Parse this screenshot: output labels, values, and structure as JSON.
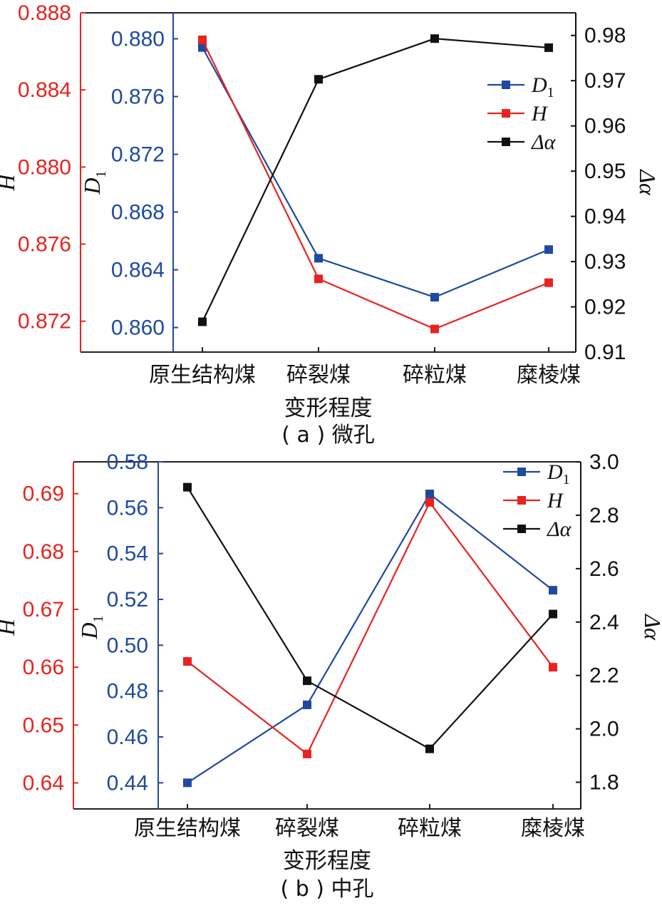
{
  "colors": {
    "H": "#e8231f",
    "D1": "#1f4aa0",
    "dalpha": "#111111"
  },
  "chart_data": [
    {
      "type": "line",
      "caption": "( a ) 微孔",
      "xlabel": "变形程度",
      "categories": [
        "原生结构煤",
        "碎裂煤",
        "碎粒煤",
        "糜棱煤"
      ],
      "axes": {
        "H": {
          "label": "H",
          "ylim": [
            0.8704,
            0.888
          ],
          "ticks": [
            "0.872",
            "0.876",
            "0.880",
            "0.884",
            "0.888"
          ],
          "color": "#e8231f"
        },
        "D1": {
          "label": "D",
          "sub": "1",
          "ylim": [
            0.8583,
            0.8818
          ],
          "ticks": [
            "0.860",
            "0.864",
            "0.868",
            "0.872",
            "0.876",
            "0.880"
          ],
          "color": "#1f4aa0"
        },
        "dalpha": {
          "label": "Δα",
          "ylim": [
            0.91,
            0.985
          ],
          "ticks": [
            "0.91",
            "0.92",
            "0.93",
            "0.94",
            "0.95",
            "0.96",
            "0.97",
            "0.98"
          ],
          "color": "#111111"
        }
      },
      "series": [
        {
          "name": "D",
          "sub": "1",
          "axis": "D1",
          "color": "#1f4aa0",
          "values": [
            0.8794,
            0.8648,
            0.8621,
            0.8654
          ]
        },
        {
          "name": "H",
          "axis": "H",
          "color": "#e8231f",
          "values": [
            0.8866,
            0.8742,
            0.8716,
            0.874
          ]
        },
        {
          "name": "Δα",
          "axis": "dalpha",
          "color": "#111111",
          "values": [
            0.9167,
            0.9703,
            0.9793,
            0.9773
          ]
        }
      ],
      "legend_placement": "top-right"
    },
    {
      "type": "line",
      "caption": "( b ) 中孔",
      "xlabel": "变形程度",
      "categories": [
        "原生结构煤",
        "碎裂煤",
        "碎粒煤",
        "糜棱煤"
      ],
      "axes": {
        "H": {
          "label": "H",
          "ylim": [
            0.6355,
            0.6955
          ],
          "ticks": [
            "0.64",
            "0.65",
            "0.66",
            "0.67",
            "0.68",
            "0.69"
          ],
          "color": "#e8231f"
        },
        "D1": {
          "label": "D",
          "sub": "1",
          "ylim": [
            0.4286,
            0.58
          ],
          "ticks": [
            "0.44",
            "0.46",
            "0.48",
            "0.50",
            "0.52",
            "0.54",
            "0.56",
            "0.58"
          ],
          "color": "#1f4aa0"
        },
        "dalpha": {
          "label": "Δα",
          "ylim": [
            1.7,
            3.0
          ],
          "ticks": [
            "1.8",
            "2.0",
            "2.2",
            "2.4",
            "2.6",
            "2.8",
            "3.0"
          ],
          "color": "#111111"
        }
      },
      "series": [
        {
          "name": "D",
          "sub": "1",
          "axis": "D1",
          "color": "#1f4aa0",
          "values": [
            0.44,
            0.474,
            0.566,
            0.524
          ]
        },
        {
          "name": "H",
          "axis": "H",
          "color": "#e8231f",
          "values": [
            0.661,
            0.645,
            0.6885,
            0.66
          ]
        },
        {
          "name": "Δα",
          "axis": "dalpha",
          "color": "#111111",
          "values": [
            2.905,
            2.18,
            1.925,
            2.43
          ]
        }
      ],
      "legend_placement": "top-right"
    }
  ]
}
